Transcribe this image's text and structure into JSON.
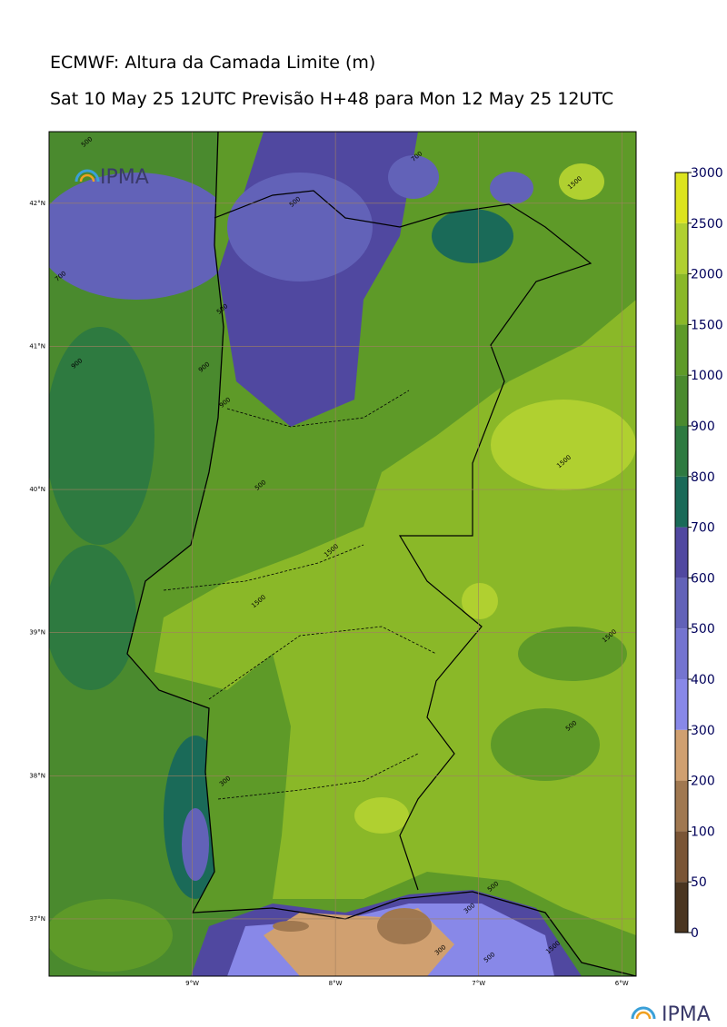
{
  "title": "ECMWF: Altura da Camada Limite (m)",
  "subtitle": "Sat 10 May 25 12UTC Previsão H+48 para Mon 12 May 25 12UTC",
  "logo": "IPMA",
  "map": {
    "lonlim": [
      -10,
      -5.9
    ],
    "latlim": [
      36.6,
      42.5
    ],
    "lat_ticks": [
      {
        "value": 42,
        "label": "42°N"
      },
      {
        "value": 41,
        "label": "41°N"
      },
      {
        "value": 40,
        "label": "40°N"
      },
      {
        "value": 39,
        "label": "39°N"
      },
      {
        "value": 38,
        "label": "38°N"
      },
      {
        "value": 37,
        "label": "37°N"
      }
    ],
    "lon_ticks": [
      {
        "value": -9,
        "label": "9°W"
      },
      {
        "value": -8,
        "label": "8°W"
      },
      {
        "value": -7,
        "label": "7°W"
      },
      {
        "value": -6,
        "label": "6°W"
      }
    ],
    "contour_labels": [
      "500",
      "700",
      "500",
      "1500",
      "700",
      "500",
      "900",
      "900",
      "900",
      "500",
      "1500",
      "1500",
      "1500",
      "1500",
      "500",
      "300",
      "300",
      "300",
      "500",
      "500",
      "1500"
    ]
  },
  "colorbar": {
    "ticks": [
      0,
      50,
      100,
      200,
      300,
      400,
      500,
      600,
      700,
      800,
      900,
      1000,
      1500,
      2000,
      2500,
      3000
    ],
    "colors": [
      "#4a3520",
      "#7a5535",
      "#a07850",
      "#d0a070",
      "#8888e8",
      "#7474d0",
      "#6262b8",
      "#5048a0",
      "#1a6a58",
      "#2e7a40",
      "#4a8a2e",
      "#5e9a28",
      "#8ab828",
      "#b0d030",
      "#dce41e"
    ]
  }
}
